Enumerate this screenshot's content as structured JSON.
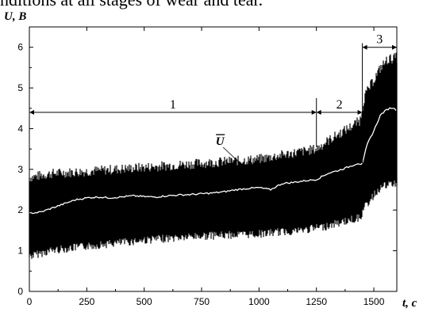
{
  "caption": "nditions at all stages of wear and tear.",
  "chart_data": {
    "type": "line",
    "ylabel": "U, B",
    "xlabel": "t, c",
    "xlim": [
      0,
      1600
    ],
    "ylim": [
      0,
      6.5
    ],
    "x_ticks": [
      "0",
      "250",
      "500",
      "750",
      "1000",
      "1250",
      "1500"
    ],
    "y_ticks": [
      "0",
      "1",
      "2",
      "3",
      "4",
      "5",
      "6"
    ],
    "grid": false,
    "series": [
      {
        "name": "Ū",
        "x": [
          0,
          50,
          100,
          150,
          200,
          250,
          300,
          350,
          400,
          450,
          500,
          550,
          600,
          650,
          700,
          750,
          800,
          850,
          900,
          950,
          1000,
          1050,
          1100,
          1150,
          1200,
          1250,
          1300,
          1350,
          1400,
          1430,
          1450,
          1470,
          1500,
          1530,
          1560,
          1580,
          1600
        ],
        "y": [
          1.92,
          1.95,
          2.05,
          2.15,
          2.25,
          2.3,
          2.32,
          2.3,
          2.32,
          2.35,
          2.33,
          2.32,
          2.35,
          2.37,
          2.38,
          2.4,
          2.42,
          2.45,
          2.5,
          2.53,
          2.55,
          2.5,
          2.65,
          2.68,
          2.72,
          2.75,
          2.9,
          2.98,
          3.08,
          3.15,
          3.12,
          3.6,
          3.95,
          4.35,
          4.48,
          4.52,
          4.45
        ]
      },
      {
        "name": "",
        "role": "signal-envelope",
        "x": [
          0,
          100,
          250,
          500,
          750,
          1000,
          1200,
          1250,
          1300,
          1400,
          1440,
          1460,
          1500,
          1530,
          1560,
          1600
        ],
        "upper": [
          2.8,
          2.9,
          2.95,
          3.05,
          3.15,
          3.25,
          3.45,
          3.5,
          3.7,
          4.05,
          4.2,
          4.8,
          5.2,
          5.5,
          5.7,
          5.75
        ],
        "lower": [
          0.9,
          1.05,
          1.15,
          1.3,
          1.4,
          1.45,
          1.55,
          1.6,
          1.65,
          1.8,
          1.85,
          2.1,
          2.4,
          2.6,
          2.65,
          2.7
        ]
      }
    ],
    "annotations": [
      {
        "label": "1",
        "x_start": 0,
        "x_end": 1250,
        "y": 4.4
      },
      {
        "label": "2",
        "x_start": 1250,
        "x_end": 1450,
        "y": 4.4
      },
      {
        "label": "3",
        "x_start": 1450,
        "x_end": 1600,
        "y": 6.0
      }
    ],
    "mean_label": "U",
    "mean_label_position": {
      "x": 830,
      "y": 3.6
    },
    "mean_pointer": {
      "x": 1030,
      "y": 2.55
    },
    "region_dividers": [
      {
        "x": 1250,
        "y_top": 4.75,
        "y_bottom": 3.55
      },
      {
        "x": 1450,
        "y_top": 6.1,
        "y_bottom": 3.15
      }
    ]
  }
}
